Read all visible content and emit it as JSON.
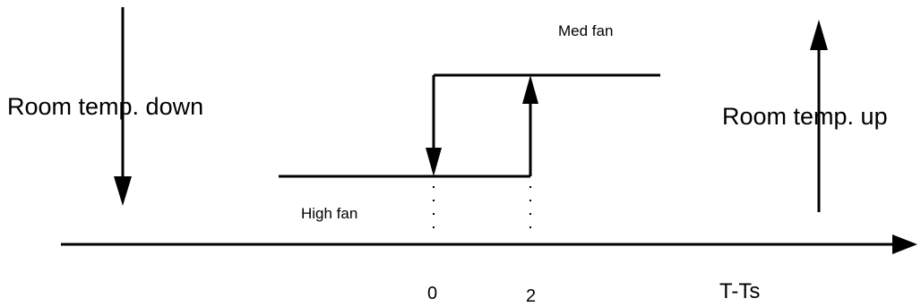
{
  "diagram": {
    "labels": {
      "room_temp_down": "Room temp. down",
      "room_temp_up": "Room temp. up",
      "med_fan": "Med fan",
      "high_fan": "High fan",
      "tick_zero": "0",
      "tick_two": "2",
      "axis_label": "T-Ts"
    },
    "colors": {
      "stroke": "#000000",
      "text": "#000000",
      "background": "#ffffff"
    }
  }
}
